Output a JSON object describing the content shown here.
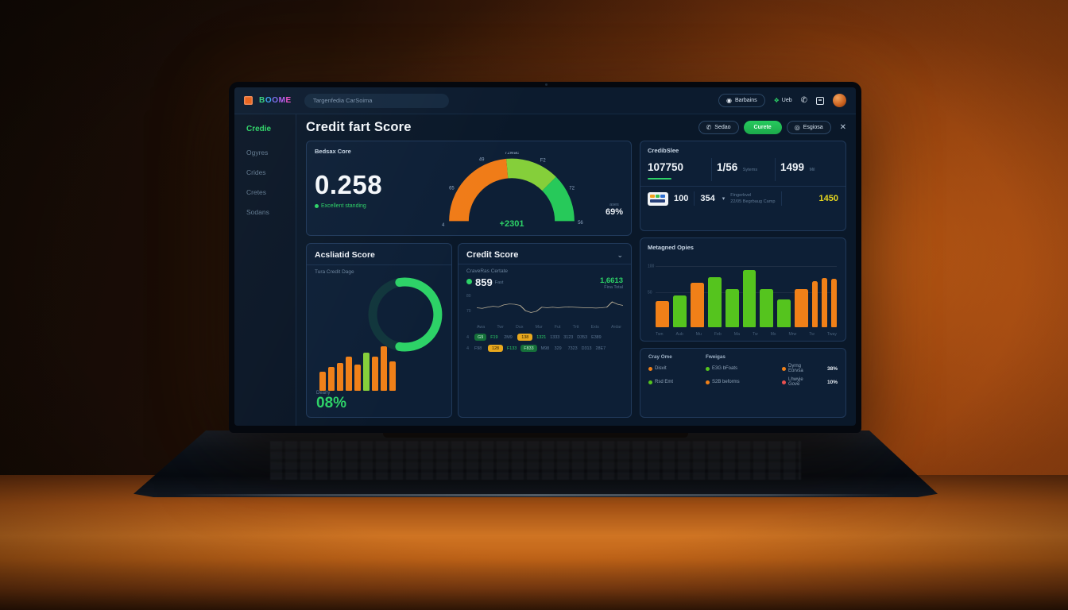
{
  "topnav": {
    "logo_text": "BOOME",
    "logo_letter_colors": [
      "#35d07f",
      "#3aa0f0",
      "#7a6cf0",
      "#b45cf0",
      "#f050c8"
    ],
    "search_placeholder": "Targenfedia CarSoima",
    "pill_button": "Barbains",
    "link_button": "Ueb"
  },
  "icons": {
    "dot_circle": "◉",
    "leaf": "❖",
    "phone": "✆",
    "chevron_down": "⌄",
    "caret_down": "▾",
    "close": "✕",
    "search": "◎"
  },
  "sidebar": {
    "items": [
      {
        "label": "Credie",
        "active": true
      },
      {
        "label": "Ogyres",
        "active": false
      },
      {
        "label": "Crides",
        "active": false
      },
      {
        "label": "Cretes",
        "active": false
      },
      {
        "label": "Sodans",
        "active": false
      }
    ]
  },
  "header": {
    "title": "Credit fart Score",
    "buttons": [
      {
        "label": "Sedao"
      },
      {
        "label": "Curete"
      },
      {
        "label": "Esgiosa"
      }
    ]
  },
  "cards": {
    "bureau": {
      "title": "Bedsax Core",
      "score": "0.258",
      "status": "Excellent standing",
      "delta": "+2301",
      "side_label": "ases",
      "side_value": "69%"
    },
    "credib": {
      "title": "CredibSlee",
      "stats": [
        {
          "value": "107750",
          "sub": ""
        },
        {
          "value": "1/56",
          "sub": "Sytems"
        },
        {
          "value": "1499",
          "sub": "Mil"
        }
      ],
      "value1": "100",
      "value2": "354",
      "note_line1": "Fingerbvel",
      "note_line2": "22/05 Begrbaug Camp",
      "amount": "1450"
    },
    "acsliatid": {
      "title": "Acsliatid Score",
      "subtitle": "Tura Credit Dage",
      "metric_label": "Dearly",
      "metric_value": "08%"
    },
    "credit_score": {
      "title": "Credit Score",
      "subtitle": "CraveRas Certate",
      "score": "859",
      "score_sub": "Fast",
      "total": "1,6613",
      "total_sub": "Fina Total"
    },
    "metagned": {
      "title": "Metagned Opies"
    },
    "legend": {
      "col1_header": "Cray Ome",
      "col2_header": "Fweigas",
      "rows": [
        {
          "items": [
            {
              "dot": "orange",
              "label": "Disvit"
            },
            {
              "dot": "green",
              "label": "E3G bFoats"
            },
            {
              "dot": "orange",
              "label": "Dyrng Eorvsa"
            }
          ],
          "value": "38%"
        },
        {
          "items": [
            {
              "dot": "green",
              "label": "Rsd Emt"
            },
            {
              "dot": "orange",
              "label": "S2B beforms"
            },
            {
              "dot": "red",
              "label": "Lhwyje Gove"
            }
          ],
          "value": "10%"
        }
      ]
    }
  },
  "chart_data": [
    {
      "id": "bureau_gauge",
      "type": "gauge",
      "title": "Bedsax Core",
      "center_label": "+2301",
      "segments": [
        {
          "from_deg": 180,
          "to_deg": 95,
          "color": "#f07c18"
        },
        {
          "from_deg": 95,
          "to_deg": 45,
          "color": "#85cf3a"
        },
        {
          "from_deg": 45,
          "to_deg": 0,
          "color": "#27c95a"
        }
      ],
      "ticks": [
        {
          "label": "4",
          "angle": 183
        },
        {
          "label": "65",
          "angle": 151
        },
        {
          "label": "49",
          "angle": 116
        },
        {
          "label": "72Mac",
          "angle": 90
        },
        {
          "label": "F2",
          "angle": 63
        },
        {
          "label": "72",
          "angle": 29
        },
        {
          "label": "56",
          "angle": -1
        }
      ]
    },
    {
      "id": "acsliatid_bars",
      "type": "bar",
      "values": [
        33,
        42,
        48,
        60,
        46,
        66,
        60,
        78,
        52
      ],
      "colors": [
        "orange",
        "orange",
        "orange",
        "orange",
        "orange",
        "green",
        "orange",
        "orange",
        "orange"
      ],
      "ring_sweep_deg": 200
    },
    {
      "id": "credit_line",
      "type": "line",
      "values": [
        50,
        48,
        52,
        55,
        53,
        60,
        63,
        62,
        58,
        40,
        34,
        38,
        52,
        50,
        52,
        50,
        52,
        53,
        52,
        51,
        50,
        50,
        49,
        50,
        52,
        70,
        62,
        58
      ],
      "y_labels": [
        "80",
        "70"
      ],
      "x_labels": [
        "Awa",
        "Twr",
        "Dux",
        "Mur",
        "Fut",
        "Trtt",
        "Exts",
        "Ardar"
      ],
      "table_rows": [
        {
          "lead": "4",
          "cells": [
            {
              "text": "G9",
              "style": "pill-green"
            },
            {
              "text": "F19",
              "style": "green"
            },
            {
              "text": "2M9",
              "style": "dim"
            },
            {
              "text": "138",
              "style": "pill-orange"
            },
            {
              "text": "1321",
              "style": "green"
            },
            {
              "text": "1333",
              "style": "dim"
            },
            {
              "text": "3123",
              "style": "dim"
            },
            {
              "text": "D353",
              "style": "dim"
            },
            {
              "text": "E389",
              "style": "dim"
            }
          ]
        },
        {
          "lead": "4",
          "cells": [
            {
              "text": "F98",
              "style": "dim"
            },
            {
              "text": "128",
              "style": "pill-orange"
            },
            {
              "text": "F133",
              "style": "green"
            },
            {
              "text": "F833",
              "style": "pill-green"
            },
            {
              "text": "M98",
              "style": "dim"
            },
            {
              "text": "329",
              "style": "dim"
            },
            {
              "text": "7323",
              "style": "dim"
            },
            {
              "text": "D313",
              "style": "dim"
            },
            {
              "text": "28E7",
              "style": "dim"
            }
          ]
        }
      ]
    },
    {
      "id": "metagned_bars",
      "type": "bar",
      "title": "Metagned Opies",
      "values": [
        38,
        46,
        64,
        72,
        55,
        82,
        54,
        40,
        55,
        66,
        70,
        69
      ],
      "colors": [
        "orange",
        "green",
        "orange",
        "green",
        "green",
        "green",
        "green",
        "green",
        "orange",
        "orange",
        "orange",
        "orange"
      ],
      "narrow_from_index": 9,
      "x_labels": [
        "Twn",
        "Aub",
        "Mu",
        "Feb",
        "Ma",
        "Tw",
        "Ms",
        "Mrw",
        "Tw",
        "Tway"
      ],
      "y_labels": [
        "100",
        "50"
      ]
    }
  ],
  "colors": {
    "green": "#2dd267",
    "light_green": "#85cf3a",
    "bright_green": "#55c41e",
    "orange": "#f08018",
    "yellow": "#e6d71f",
    "red": "#e85050"
  }
}
